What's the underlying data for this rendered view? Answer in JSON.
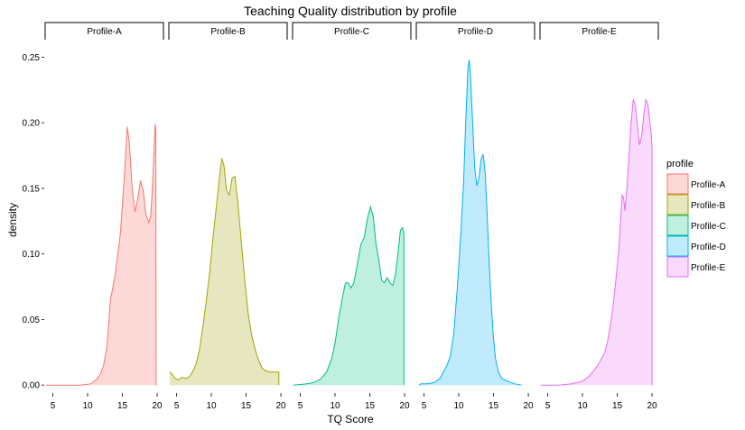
{
  "chart_data": {
    "type": "area",
    "title": "Teaching Quality distribution by profile",
    "xlabel": "TQ Score",
    "ylabel": "density",
    "xlim": [
      3.9,
      20.9
    ],
    "ylim": [
      -0.004,
      0.262
    ],
    "x_ticks": [
      5,
      10,
      15,
      20
    ],
    "x_tick_labels": [
      "5",
      "10",
      "15",
      "20"
    ],
    "y_ticks": [
      0,
      0.05,
      0.1,
      0.15,
      0.2,
      0.25
    ],
    "y_tick_labels": [
      "0.00",
      "0.05",
      "0.10",
      "0.15",
      "0.20",
      "0.25"
    ],
    "grid": false,
    "legend": {
      "title": "profile",
      "position": "right"
    },
    "series": [
      {
        "name": "Profile-A",
        "line_color": "#F8766D",
        "fill_color": "#FCD9D6",
        "points": [
          [
            4,
            0
          ],
          [
            9,
            0
          ],
          [
            10.5,
            0.001
          ],
          [
            11.2,
            0.004
          ],
          [
            11.8,
            0.008
          ],
          [
            12.3,
            0.015
          ],
          [
            12.8,
            0.03
          ],
          [
            13.3,
            0.065
          ],
          [
            14,
            0.085
          ],
          [
            14.7,
            0.115
          ],
          [
            15.3,
            0.16
          ],
          [
            15.7,
            0.197
          ],
          [
            16,
            0.185
          ],
          [
            16.4,
            0.15
          ],
          [
            16.8,
            0.132
          ],
          [
            17.2,
            0.142
          ],
          [
            17.6,
            0.156
          ],
          [
            18,
            0.148
          ],
          [
            18.4,
            0.13
          ],
          [
            18.8,
            0.124
          ],
          [
            19.1,
            0.13
          ],
          [
            19.4,
            0.16
          ],
          [
            19.7,
            0.199
          ],
          [
            19.8,
            0.195
          ],
          [
            19.85,
            0
          ]
        ]
      },
      {
        "name": "Profile-B",
        "line_color": "#A3A500",
        "fill_color": "#E6E6BF",
        "points": [
          [
            4,
            0.01
          ],
          [
            4.4,
            0.008
          ],
          [
            4.8,
            0.005
          ],
          [
            5.3,
            0.004
          ],
          [
            5.8,
            0.006
          ],
          [
            6.3,
            0.005
          ],
          [
            6.8,
            0.006
          ],
          [
            7.3,
            0.01
          ],
          [
            7.8,
            0.016
          ],
          [
            8.3,
            0.027
          ],
          [
            8.8,
            0.045
          ],
          [
            9.3,
            0.065
          ],
          [
            9.8,
            0.088
          ],
          [
            10.3,
            0.115
          ],
          [
            10.8,
            0.14
          ],
          [
            11.2,
            0.16
          ],
          [
            11.5,
            0.173
          ],
          [
            11.8,
            0.168
          ],
          [
            12.2,
            0.148
          ],
          [
            12.6,
            0.145
          ],
          [
            13,
            0.158
          ],
          [
            13.4,
            0.159
          ],
          [
            13.8,
            0.14
          ],
          [
            14.3,
            0.11
          ],
          [
            14.8,
            0.08
          ],
          [
            15.3,
            0.055
          ],
          [
            15.8,
            0.038
          ],
          [
            16.3,
            0.027
          ],
          [
            16.8,
            0.019
          ],
          [
            17.3,
            0.013
          ],
          [
            17.8,
            0.011
          ],
          [
            18.3,
            0.01
          ],
          [
            18.8,
            0.01
          ],
          [
            19.3,
            0.01
          ],
          [
            19.7,
            0.01
          ],
          [
            19.7,
            0
          ]
        ]
      },
      {
        "name": "Profile-C",
        "line_color": "#00BF7D",
        "fill_color": "#BFEFDE",
        "points": [
          [
            4,
            0
          ],
          [
            6,
            0.001
          ],
          [
            7,
            0.002
          ],
          [
            8,
            0.005
          ],
          [
            8.8,
            0.01
          ],
          [
            9.5,
            0.02
          ],
          [
            10,
            0.032
          ],
          [
            10.5,
            0.05
          ],
          [
            11,
            0.065
          ],
          [
            11.5,
            0.078
          ],
          [
            11.9,
            0.078
          ],
          [
            12.3,
            0.074
          ],
          [
            12.7,
            0.078
          ],
          [
            13.2,
            0.092
          ],
          [
            13.7,
            0.107
          ],
          [
            14.2,
            0.113
          ],
          [
            14.7,
            0.128
          ],
          [
            15.1,
            0.136
          ],
          [
            15.5,
            0.128
          ],
          [
            15.9,
            0.107
          ],
          [
            16.3,
            0.095
          ],
          [
            16.7,
            0.08
          ],
          [
            17.1,
            0.078
          ],
          [
            17.5,
            0.082
          ],
          [
            17.9,
            0.078
          ],
          [
            18.3,
            0.076
          ],
          [
            18.7,
            0.085
          ],
          [
            19.1,
            0.103
          ],
          [
            19.4,
            0.118
          ],
          [
            19.7,
            0.12
          ],
          [
            19.9,
            0.115
          ],
          [
            19.9,
            0
          ]
        ]
      },
      {
        "name": "Profile-D",
        "line_color": "#00B0F6",
        "fill_color": "#BFEBFD",
        "points": [
          [
            4.3,
            0
          ],
          [
            4.6,
            0.001
          ],
          [
            5.5,
            0.001
          ],
          [
            6.5,
            0.002
          ],
          [
            7.3,
            0.005
          ],
          [
            7.8,
            0.01
          ],
          [
            8.3,
            0.015
          ],
          [
            8.8,
            0.022
          ],
          [
            9.3,
            0.04
          ],
          [
            9.8,
            0.075
          ],
          [
            10.3,
            0.115
          ],
          [
            10.7,
            0.155
          ],
          [
            11,
            0.2
          ],
          [
            11.3,
            0.24
          ],
          [
            11.5,
            0.248
          ],
          [
            11.7,
            0.235
          ],
          [
            12,
            0.2
          ],
          [
            12.3,
            0.165
          ],
          [
            12.6,
            0.152
          ],
          [
            12.9,
            0.158
          ],
          [
            13.2,
            0.172
          ],
          [
            13.5,
            0.176
          ],
          [
            13.8,
            0.162
          ],
          [
            14.1,
            0.128
          ],
          [
            14.4,
            0.09
          ],
          [
            14.7,
            0.06
          ],
          [
            15,
            0.035
          ],
          [
            15.3,
            0.02
          ],
          [
            15.7,
            0.01
          ],
          [
            16.2,
            0.005
          ],
          [
            17,
            0.003
          ],
          [
            18,
            0.001
          ],
          [
            19,
            0
          ]
        ]
      },
      {
        "name": "Profile-E",
        "line_color": "#E76BF3",
        "fill_color": "#F9DAFC",
        "points": [
          [
            4,
            0
          ],
          [
            6.5,
            0
          ],
          [
            8.5,
            0.001
          ],
          [
            10,
            0.003
          ],
          [
            11,
            0.007
          ],
          [
            11.8,
            0.012
          ],
          [
            12.3,
            0.016
          ],
          [
            12.7,
            0.02
          ],
          [
            13.2,
            0.025
          ],
          [
            13.6,
            0.033
          ],
          [
            14,
            0.045
          ],
          [
            14.4,
            0.06
          ],
          [
            14.8,
            0.08
          ],
          [
            15.2,
            0.102
          ],
          [
            15.5,
            0.128
          ],
          [
            15.7,
            0.145
          ],
          [
            15.9,
            0.143
          ],
          [
            16.1,
            0.133
          ],
          [
            16.4,
            0.15
          ],
          [
            16.7,
            0.175
          ],
          [
            17,
            0.2
          ],
          [
            17.3,
            0.218
          ],
          [
            17.6,
            0.213
          ],
          [
            17.9,
            0.198
          ],
          [
            18.2,
            0.183
          ],
          [
            18.5,
            0.19
          ],
          [
            18.8,
            0.205
          ],
          [
            19.1,
            0.218
          ],
          [
            19.4,
            0.214
          ],
          [
            19.7,
            0.2
          ],
          [
            19.9,
            0.19
          ],
          [
            20,
            0.18
          ],
          [
            20,
            0
          ]
        ]
      }
    ]
  }
}
